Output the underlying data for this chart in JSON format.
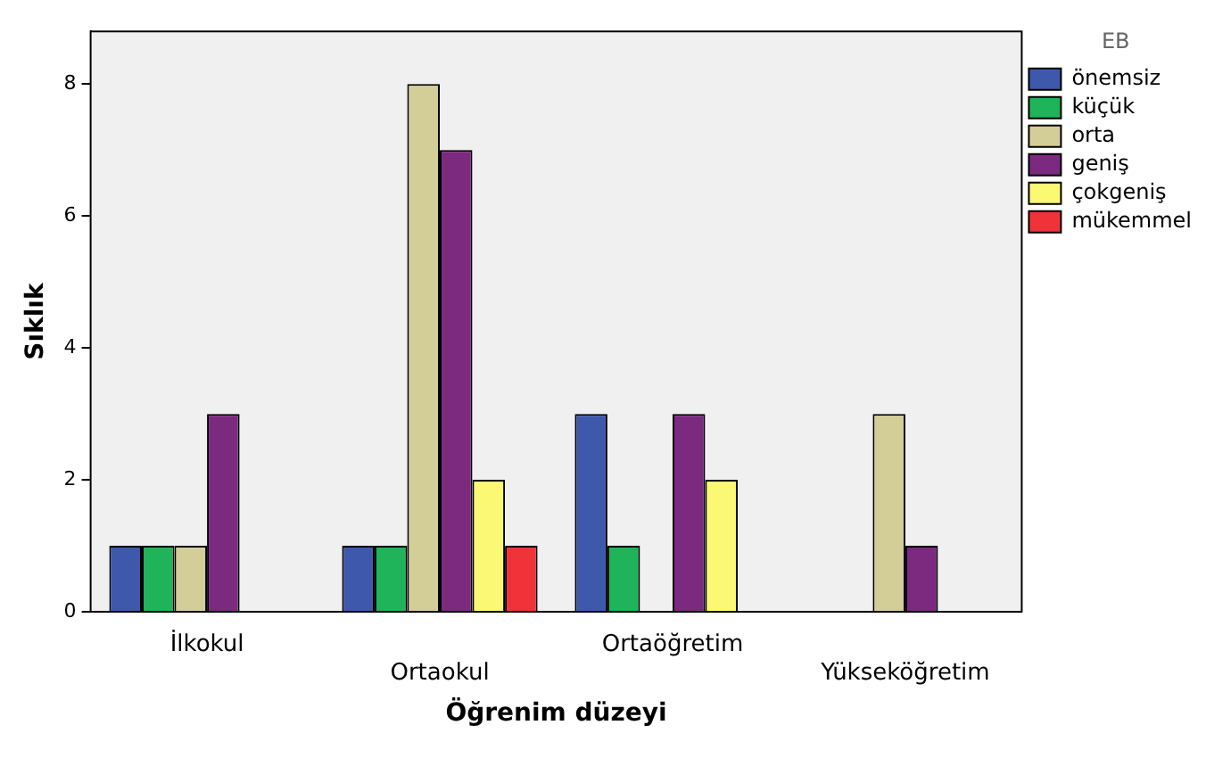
{
  "chart_data": {
    "type": "bar",
    "xlabel": "Öğrenim düzeyi",
    "ylabel": "Sıklık",
    "legend_title": "EB",
    "categories": [
      "İlkokul",
      "Ortaokul",
      "Ortaöğretim",
      "Yükseköğretim"
    ],
    "series": [
      {
        "name": "önemsiz",
        "color": "#3e58ac",
        "values": [
          1,
          1,
          3,
          null
        ]
      },
      {
        "name": "küçük",
        "color": "#1fb35a",
        "values": [
          1,
          1,
          1,
          null
        ]
      },
      {
        "name": "orta",
        "color": "#d3ce97",
        "values": [
          1,
          8,
          null,
          3
        ]
      },
      {
        "name": "geniş",
        "color": "#7b2a80",
        "values": [
          3,
          7,
          3,
          1
        ]
      },
      {
        "name": "çokgeniş",
        "color": "#fbf873",
        "values": [
          null,
          2,
          2,
          null
        ]
      },
      {
        "name": "mükemmel",
        "color": "#ef3338",
        "values": [
          null,
          1,
          null,
          null
        ]
      }
    ],
    "ylim": [
      0,
      8.8
    ],
    "yticks": [
      0,
      2,
      4,
      6,
      8
    ],
    "grid": false,
    "legend": "right"
  }
}
